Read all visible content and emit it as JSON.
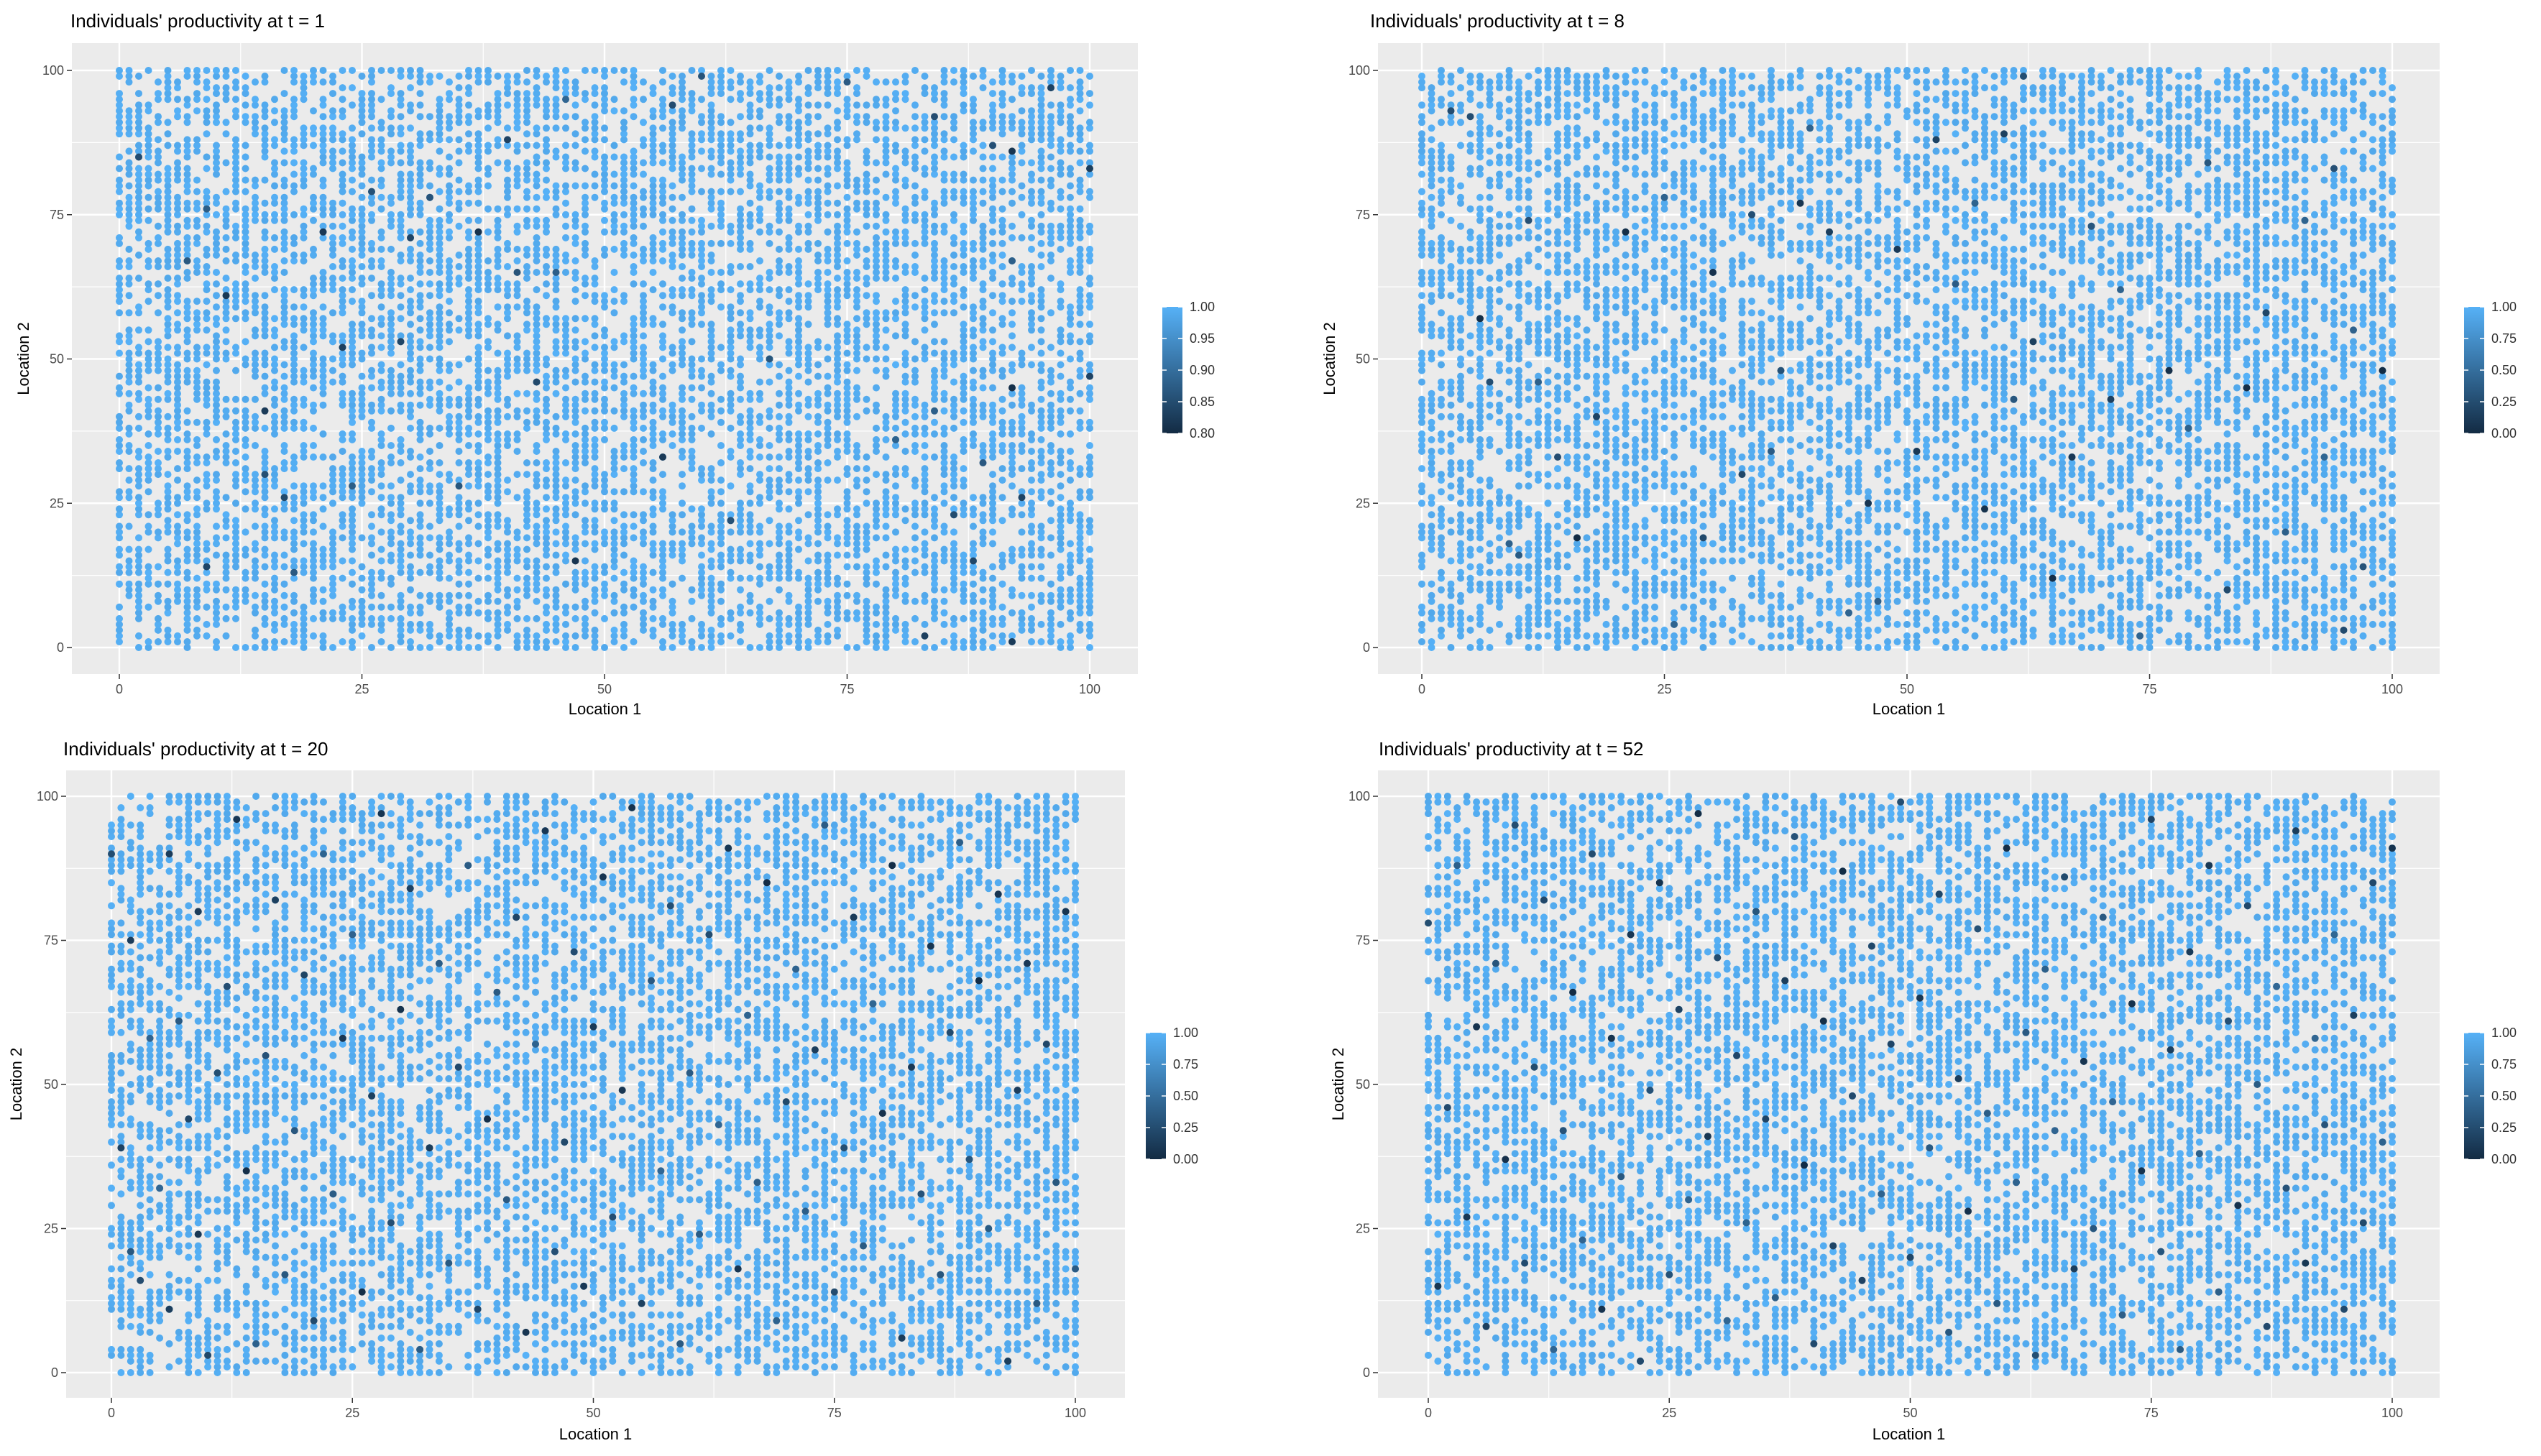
{
  "colors": {
    "panel_background": "#ebebeb",
    "gridline": "#ffffff",
    "point_high": "#56b1f7",
    "point_low": "#132b43"
  },
  "chart_data": [
    {
      "type": "scatter",
      "title": "Individuals' productivity at t = 1",
      "xlabel": "Location 1",
      "ylabel": "Location 2",
      "xlim": [
        0,
        100
      ],
      "ylim": [
        0,
        100
      ],
      "x_ticks": [
        "0",
        "25",
        "50",
        "75",
        "100"
      ],
      "y_ticks": [
        "0",
        "25",
        "50",
        "75",
        "100"
      ],
      "grid": true,
      "legend_position": "right",
      "color_scale": {
        "min": 0.8,
        "max": 1.0,
        "ticks": [
          "0.80",
          "0.85",
          "0.90",
          "0.95",
          "1.00"
        ]
      },
      "dark_points": [
        [
          2,
          85
        ],
        [
          7,
          67
        ],
        [
          9,
          76
        ],
        [
          9,
          14
        ],
        [
          11,
          61
        ],
        [
          15,
          30
        ],
        [
          15,
          41
        ],
        [
          17,
          26
        ],
        [
          18,
          13
        ],
        [
          21,
          72
        ],
        [
          23,
          52
        ],
        [
          24,
          28
        ],
        [
          26,
          79
        ],
        [
          29,
          53
        ],
        [
          30,
          71
        ],
        [
          32,
          78
        ],
        [
          35,
          28
        ],
        [
          37,
          72
        ],
        [
          40,
          88
        ],
        [
          41,
          65
        ],
        [
          43,
          46
        ],
        [
          45,
          65
        ],
        [
          47,
          15
        ],
        [
          46,
          95
        ],
        [
          56,
          33
        ],
        [
          57,
          94
        ],
        [
          60,
          99
        ],
        [
          63,
          22
        ],
        [
          67,
          50
        ],
        [
          75,
          98
        ],
        [
          80,
          36
        ],
        [
          84,
          92
        ],
        [
          84,
          41
        ],
        [
          86,
          23
        ],
        [
          89,
          32
        ],
        [
          90,
          87
        ],
        [
          92,
          86
        ],
        [
          92,
          67
        ],
        [
          92,
          45
        ],
        [
          93,
          26
        ],
        [
          96,
          97
        ],
        [
          100,
          83
        ],
        [
          100,
          47
        ],
        [
          92,
          1
        ],
        [
          83,
          2
        ],
        [
          88,
          15
        ]
      ]
    },
    {
      "type": "scatter",
      "title": "Individuals' productivity at t = 8",
      "xlabel": "Location 1",
      "ylabel": "Location 2",
      "xlim": [
        0,
        100
      ],
      "ylim": [
        0,
        100
      ],
      "x_ticks": [
        "0",
        "25",
        "50",
        "75",
        "100"
      ],
      "y_ticks": [
        "0",
        "25",
        "50",
        "75",
        "100"
      ],
      "grid": true,
      "legend_position": "right",
      "color_scale": {
        "min": 0.0,
        "max": 1.0,
        "ticks": [
          "0.00",
          "0.25",
          "0.50",
          "0.75",
          "1.00"
        ]
      },
      "dark_points": [
        [
          3,
          93
        ],
        [
          5,
          92
        ],
        [
          6,
          57
        ],
        [
          7,
          46
        ],
        [
          9,
          18
        ],
        [
          10,
          16
        ],
        [
          11,
          74
        ],
        [
          12,
          46
        ],
        [
          14,
          33
        ],
        [
          16,
          19
        ],
        [
          18,
          40
        ],
        [
          21,
          72
        ],
        [
          25,
          78
        ],
        [
          26,
          4
        ],
        [
          29,
          19
        ],
        [
          30,
          65
        ],
        [
          33,
          30
        ],
        [
          34,
          75
        ],
        [
          37,
          48
        ],
        [
          39,
          77
        ],
        [
          40,
          90
        ],
        [
          42,
          72
        ],
        [
          44,
          6
        ],
        [
          46,
          25
        ],
        [
          47,
          8
        ],
        [
          49,
          69
        ],
        [
          51,
          34
        ],
        [
          53,
          88
        ],
        [
          55,
          63
        ],
        [
          57,
          77
        ],
        [
          58,
          24
        ],
        [
          60,
          89
        ],
        [
          61,
          43
        ],
        [
          63,
          53
        ],
        [
          65,
          12
        ],
        [
          67,
          33
        ],
        [
          69,
          73
        ],
        [
          71,
          43
        ],
        [
          72,
          62
        ],
        [
          74,
          2
        ],
        [
          77,
          48
        ],
        [
          79,
          38
        ],
        [
          81,
          84
        ],
        [
          83,
          10
        ],
        [
          85,
          45
        ],
        [
          87,
          58
        ],
        [
          89,
          20
        ],
        [
          91,
          74
        ],
        [
          93,
          33
        ],
        [
          94,
          83
        ],
        [
          95,
          3
        ],
        [
          96,
          55
        ],
        [
          97,
          14
        ],
        [
          99,
          48
        ],
        [
          62,
          99
        ],
        [
          36,
          34
        ]
      ]
    },
    {
      "type": "scatter",
      "title": "Individuals' productivity at t = 20",
      "xlabel": "Location 1",
      "ylabel": "Location 2",
      "xlim": [
        0,
        100
      ],
      "ylim": [
        0,
        100
      ],
      "x_ticks": [
        "0",
        "25",
        "50",
        "75",
        "100"
      ],
      "y_ticks": [
        "0",
        "25",
        "50",
        "75",
        "100"
      ],
      "grid": true,
      "legend_position": "right",
      "color_scale": {
        "min": 0.0,
        "max": 1.0,
        "ticks": [
          "0.00",
          "0.25",
          "0.50",
          "0.75",
          "1.00"
        ]
      },
      "dark_points": [
        [
          0,
          90
        ],
        [
          1,
          39
        ],
        [
          2,
          75
        ],
        [
          2,
          21
        ],
        [
          3,
          16
        ],
        [
          4,
          58
        ],
        [
          5,
          32
        ],
        [
          6,
          90
        ],
        [
          6,
          11
        ],
        [
          7,
          61
        ],
        [
          8,
          44
        ],
        [
          9,
          80
        ],
        [
          9,
          24
        ],
        [
          10,
          3
        ],
        [
          11,
          52
        ],
        [
          12,
          67
        ],
        [
          13,
          96
        ],
        [
          14,
          35
        ],
        [
          15,
          5
        ],
        [
          16,
          55
        ],
        [
          17,
          82
        ],
        [
          18,
          17
        ],
        [
          19,
          42
        ],
        [
          20,
          69
        ],
        [
          21,
          9
        ],
        [
          22,
          90
        ],
        [
          23,
          31
        ],
        [
          24,
          58
        ],
        [
          25,
          76
        ],
        [
          26,
          14
        ],
        [
          27,
          48
        ],
        [
          28,
          97
        ],
        [
          29,
          26
        ],
        [
          30,
          63
        ],
        [
          31,
          84
        ],
        [
          32,
          4
        ],
        [
          33,
          39
        ],
        [
          34,
          71
        ],
        [
          35,
          19
        ],
        [
          36,
          53
        ],
        [
          37,
          88
        ],
        [
          38,
          11
        ],
        [
          39,
          44
        ],
        [
          40,
          66
        ],
        [
          41,
          30
        ],
        [
          42,
          79
        ],
        [
          43,
          7
        ],
        [
          44,
          57
        ],
        [
          45,
          94
        ],
        [
          46,
          21
        ],
        [
          47,
          40
        ],
        [
          48,
          73
        ],
        [
          49,
          15
        ],
        [
          50,
          60
        ],
        [
          51,
          86
        ],
        [
          52,
          27
        ],
        [
          53,
          49
        ],
        [
          54,
          98
        ],
        [
          55,
          12
        ],
        [
          56,
          68
        ],
        [
          57,
          35
        ],
        [
          58,
          81
        ],
        [
          59,
          5
        ],
        [
          60,
          52
        ],
        [
          61,
          24
        ],
        [
          62,
          76
        ],
        [
          63,
          43
        ],
        [
          64,
          91
        ],
        [
          65,
          18
        ],
        [
          66,
          62
        ],
        [
          67,
          33
        ],
        [
          68,
          85
        ],
        [
          69,
          9
        ],
        [
          70,
          47
        ],
        [
          71,
          70
        ],
        [
          72,
          28
        ],
        [
          73,
          56
        ],
        [
          74,
          95
        ],
        [
          75,
          14
        ],
        [
          76,
          39
        ],
        [
          77,
          79
        ],
        [
          78,
          22
        ],
        [
          79,
          64
        ],
        [
          80,
          45
        ],
        [
          81,
          88
        ],
        [
          82,
          6
        ],
        [
          83,
          53
        ],
        [
          84,
          31
        ],
        [
          85,
          74
        ],
        [
          86,
          17
        ],
        [
          87,
          59
        ],
        [
          88,
          92
        ],
        [
          89,
          37
        ],
        [
          90,
          68
        ],
        [
          91,
          25
        ],
        [
          92,
          83
        ],
        [
          93,
          2
        ],
        [
          94,
          49
        ],
        [
          95,
          71
        ],
        [
          96,
          12
        ],
        [
          97,
          57
        ],
        [
          98,
          33
        ],
        [
          99,
          80
        ],
        [
          100,
          18
        ]
      ]
    },
    {
      "type": "scatter",
      "title": "Individuals' productivity at t = 52",
      "xlabel": "Location 1",
      "ylabel": "Location 2",
      "xlim": [
        0,
        100
      ],
      "ylim": [
        0,
        100
      ],
      "x_ticks": [
        "0",
        "25",
        "50",
        "75",
        "100"
      ],
      "y_ticks": [
        "0",
        "25",
        "50",
        "75",
        "100"
      ],
      "grid": true,
      "legend_position": "right",
      "color_scale": {
        "min": 0.0,
        "max": 1.0,
        "ticks": [
          "0.00",
          "0.25",
          "0.50",
          "0.75",
          "1.00"
        ]
      },
      "dark_points": [
        [
          0,
          78
        ],
        [
          1,
          15
        ],
        [
          2,
          46
        ],
        [
          3,
          88
        ],
        [
          4,
          27
        ],
        [
          5,
          60
        ],
        [
          6,
          8
        ],
        [
          7,
          71
        ],
        [
          8,
          37
        ],
        [
          9,
          95
        ],
        [
          10,
          19
        ],
        [
          11,
          53
        ],
        [
          12,
          82
        ],
        [
          13,
          4
        ],
        [
          14,
          42
        ],
        [
          15,
          66
        ],
        [
          16,
          23
        ],
        [
          17,
          90
        ],
        [
          18,
          11
        ],
        [
          19,
          58
        ],
        [
          20,
          34
        ],
        [
          21,
          76
        ],
        [
          22,
          2
        ],
        [
          23,
          49
        ],
        [
          24,
          85
        ],
        [
          25,
          17
        ],
        [
          26,
          63
        ],
        [
          27,
          30
        ],
        [
          28,
          97
        ],
        [
          29,
          41
        ],
        [
          30,
          72
        ],
        [
          31,
          9
        ],
        [
          32,
          55
        ],
        [
          33,
          26
        ],
        [
          34,
          80
        ],
        [
          35,
          44
        ],
        [
          36,
          13
        ],
        [
          37,
          68
        ],
        [
          38,
          93
        ],
        [
          39,
          36
        ],
        [
          40,
          5
        ],
        [
          41,
          61
        ],
        [
          42,
          22
        ],
        [
          43,
          87
        ],
        [
          44,
          48
        ],
        [
          45,
          16
        ],
        [
          46,
          74
        ],
        [
          47,
          31
        ],
        [
          48,
          57
        ],
        [
          49,
          99
        ],
        [
          50,
          20
        ],
        [
          51,
          65
        ],
        [
          52,
          39
        ],
        [
          53,
          83
        ],
        [
          54,
          7
        ],
        [
          55,
          51
        ],
        [
          56,
          28
        ],
        [
          57,
          77
        ],
        [
          58,
          45
        ],
        [
          59,
          12
        ],
        [
          60,
          91
        ],
        [
          61,
          33
        ],
        [
          62,
          59
        ],
        [
          63,
          3
        ],
        [
          64,
          70
        ],
        [
          65,
          42
        ],
        [
          66,
          86
        ],
        [
          67,
          18
        ],
        [
          68,
          54
        ],
        [
          69,
          25
        ],
        [
          70,
          79
        ],
        [
          71,
          47
        ],
        [
          72,
          10
        ],
        [
          73,
          64
        ],
        [
          74,
          35
        ],
        [
          75,
          96
        ],
        [
          76,
          21
        ],
        [
          77,
          56
        ],
        [
          78,
          4
        ],
        [
          79,
          73
        ],
        [
          80,
          38
        ],
        [
          81,
          88
        ],
        [
          82,
          14
        ],
        [
          83,
          61
        ],
        [
          84,
          29
        ],
        [
          85,
          81
        ],
        [
          86,
          50
        ],
        [
          87,
          8
        ],
        [
          88,
          67
        ],
        [
          89,
          32
        ],
        [
          90,
          94
        ],
        [
          91,
          19
        ],
        [
          92,
          58
        ],
        [
          93,
          43
        ],
        [
          94,
          76
        ],
        [
          95,
          11
        ],
        [
          96,
          62
        ],
        [
          97,
          26
        ],
        [
          98,
          85
        ],
        [
          99,
          40
        ],
        [
          100,
          91
        ]
      ]
    }
  ]
}
